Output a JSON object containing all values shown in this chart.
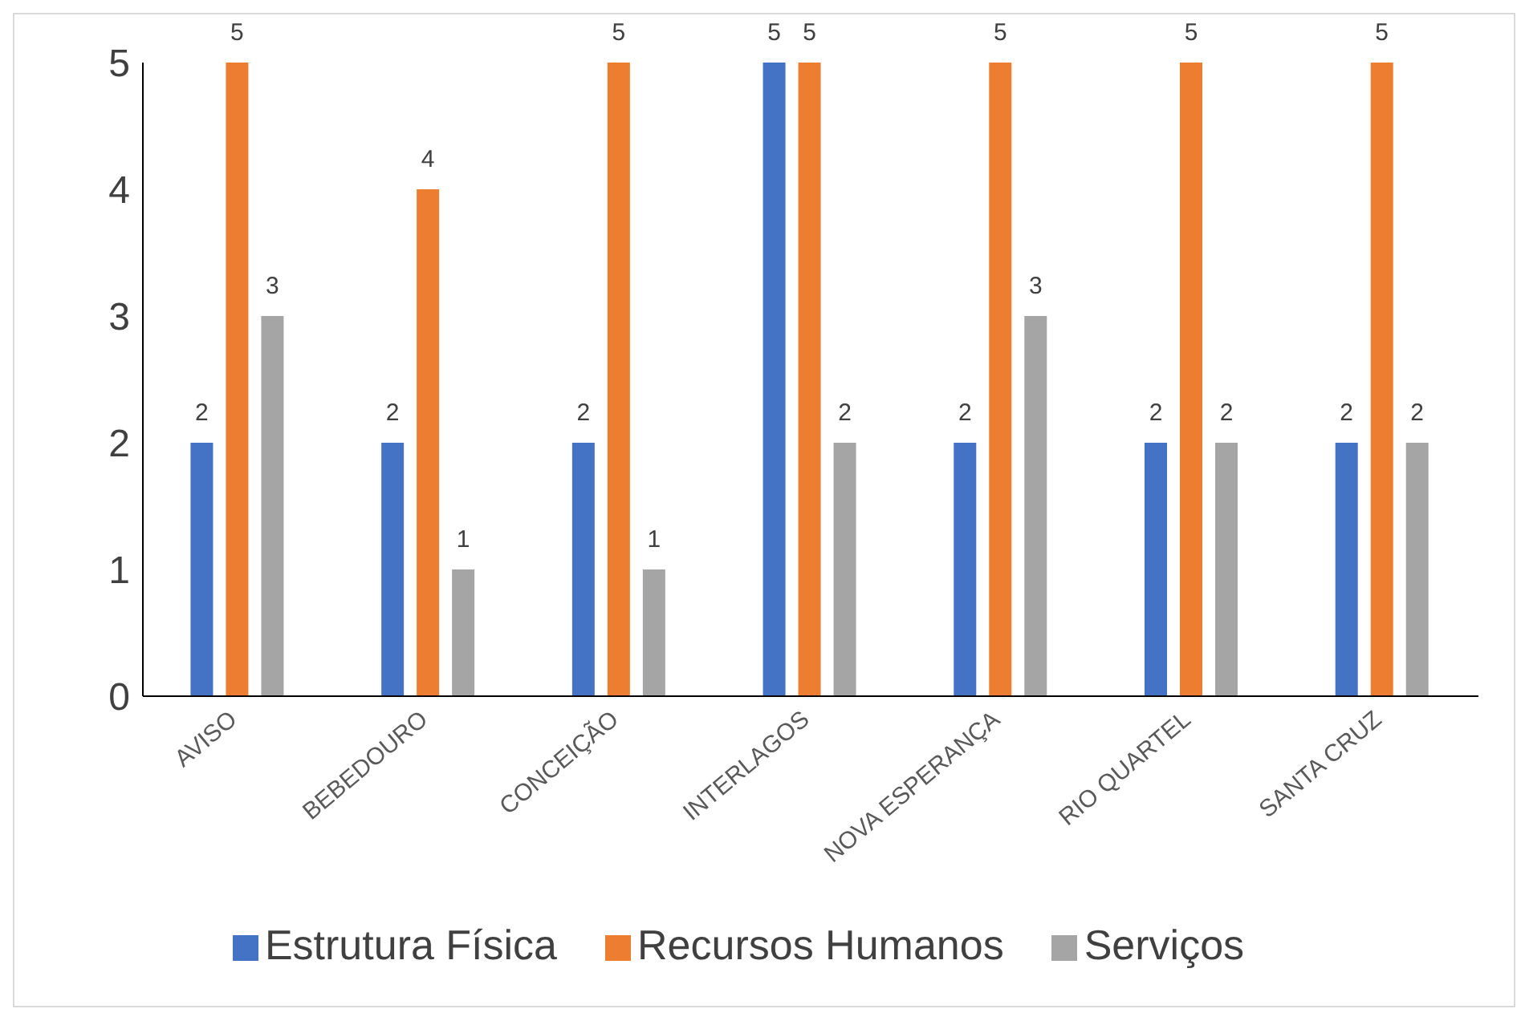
{
  "chart_data": {
    "type": "bar",
    "categories": [
      "AVISO",
      "BEBEDOURO",
      "CONCEIÇÃO",
      "INTERLAGOS",
      "NOVA ESPERANÇA",
      "RIO QUARTEL",
      "SANTA CRUZ"
    ],
    "series": [
      {
        "name": "Estrutura Física",
        "color": "#4472c4",
        "values": [
          2,
          2,
          2,
          5,
          2,
          2,
          2
        ]
      },
      {
        "name": "Recursos Humanos",
        "color": "#ed7d31",
        "values": [
          5,
          4,
          5,
          5,
          5,
          5,
          5
        ]
      },
      {
        "name": "Serviços",
        "color": "#a5a5a5",
        "values": [
          3,
          1,
          1,
          2,
          3,
          2,
          2
        ]
      }
    ],
    "ylim": [
      0,
      5
    ],
    "yticks": [
      0,
      1,
      2,
      3,
      4,
      5
    ],
    "grid": false,
    "legend": "bottom",
    "data_labels": true
  }
}
